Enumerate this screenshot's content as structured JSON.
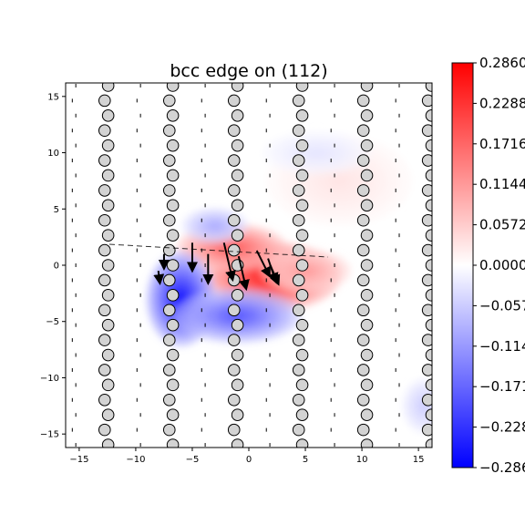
{
  "chart_data": {
    "type": "heatmap",
    "title": "bcc edge on (112)",
    "xlabel": "",
    "ylabel": "",
    "xlim": [
      -16.2,
      16.2
    ],
    "ylim": [
      -16.2,
      16.2
    ],
    "x_ticks": [
      -15,
      -10,
      -5,
      0,
      5,
      10,
      15
    ],
    "y_ticks": [
      -15,
      -10,
      -5,
      0,
      5,
      10,
      15
    ],
    "x_tick_labels": [
      "−15",
      "−10",
      "−5",
      "0",
      "5",
      "10",
      "15"
    ],
    "y_tick_labels": [
      "−15",
      "−10",
      "−5",
      "0",
      "5",
      "10",
      "15"
    ],
    "colormap": "bwr",
    "colorbar": {
      "min": -0.286,
      "max": 0.286,
      "ticks": [
        0.286,
        0.2288,
        0.1716,
        0.1144,
        0.0572,
        0.0,
        -0.0572,
        -0.1144,
        -0.1716,
        -0.2288,
        -0.286
      ],
      "tick_labels": [
        "0.2860",
        "0.2288",
        "0.1716",
        "0.1144",
        "0.0572",
        "0.0000",
        "−0.0572",
        "−0.1144",
        "−0.1716",
        "−0.2288",
        "−0.2860"
      ]
    },
    "lattice": {
      "row_spacing": 1.33,
      "row_shift": 2.55,
      "col_spacing": 2.86
    },
    "strain_field": [
      {
        "x": 2.0,
        "y": -1.0,
        "value": 0.286,
        "sx": 3.8,
        "sy": 1.9
      },
      {
        "x": -1.5,
        "y": 1.6,
        "value": 0.2,
        "sx": 3.0,
        "sy": 1.3
      },
      {
        "x": 5.0,
        "y": -0.5,
        "value": 0.12,
        "sx": 2.5,
        "sy": 1.2
      },
      {
        "x": 8.0,
        "y": 7.5,
        "value": 0.03,
        "sx": 4.0,
        "sy": 2.5
      },
      {
        "x": -6.0,
        "y": -3.0,
        "value": -0.286,
        "sx": 1.9,
        "sy": 2.6
      },
      {
        "x": -1.0,
        "y": -4.5,
        "value": -0.2,
        "sx": 3.5,
        "sy": 1.5
      },
      {
        "x": -3.0,
        "y": 3.5,
        "value": -0.1,
        "sx": 1.8,
        "sy": 1.0
      },
      {
        "x": 6.0,
        "y": 10.0,
        "value": -0.03,
        "sx": 3.0,
        "sy": 1.2
      },
      {
        "x": 15.5,
        "y": -12.5,
        "value": -0.06,
        "sx": 1.2,
        "sy": 1.5
      }
    ],
    "displacement_arrows": [
      {
        "x": -5.0,
        "y": 2.0,
        "dx": 0.0,
        "dy": -2.2
      },
      {
        "x": -3.6,
        "y": 1.0,
        "dx": 0.0,
        "dy": -2.3
      },
      {
        "x": -2.2,
        "y": 2.0,
        "dx": 0.7,
        "dy": -3.0
      },
      {
        "x": -0.9,
        "y": 0.8,
        "dx": 0.6,
        "dy": -2.6
      },
      {
        "x": 0.7,
        "y": 1.3,
        "dx": 1.0,
        "dy": -2.0
      },
      {
        "x": 1.7,
        "y": 0.6,
        "dx": 0.6,
        "dy": -1.8
      },
      {
        "x": 1.9,
        "y": 0.0,
        "dx": 0.6,
        "dy": -1.4
      },
      {
        "x": -7.5,
        "y": 1.0,
        "dx": 0.0,
        "dy": -1.0
      },
      {
        "x": -8.0,
        "y": -0.5,
        "dx": 0.1,
        "dy": -0.8
      }
    ]
  }
}
